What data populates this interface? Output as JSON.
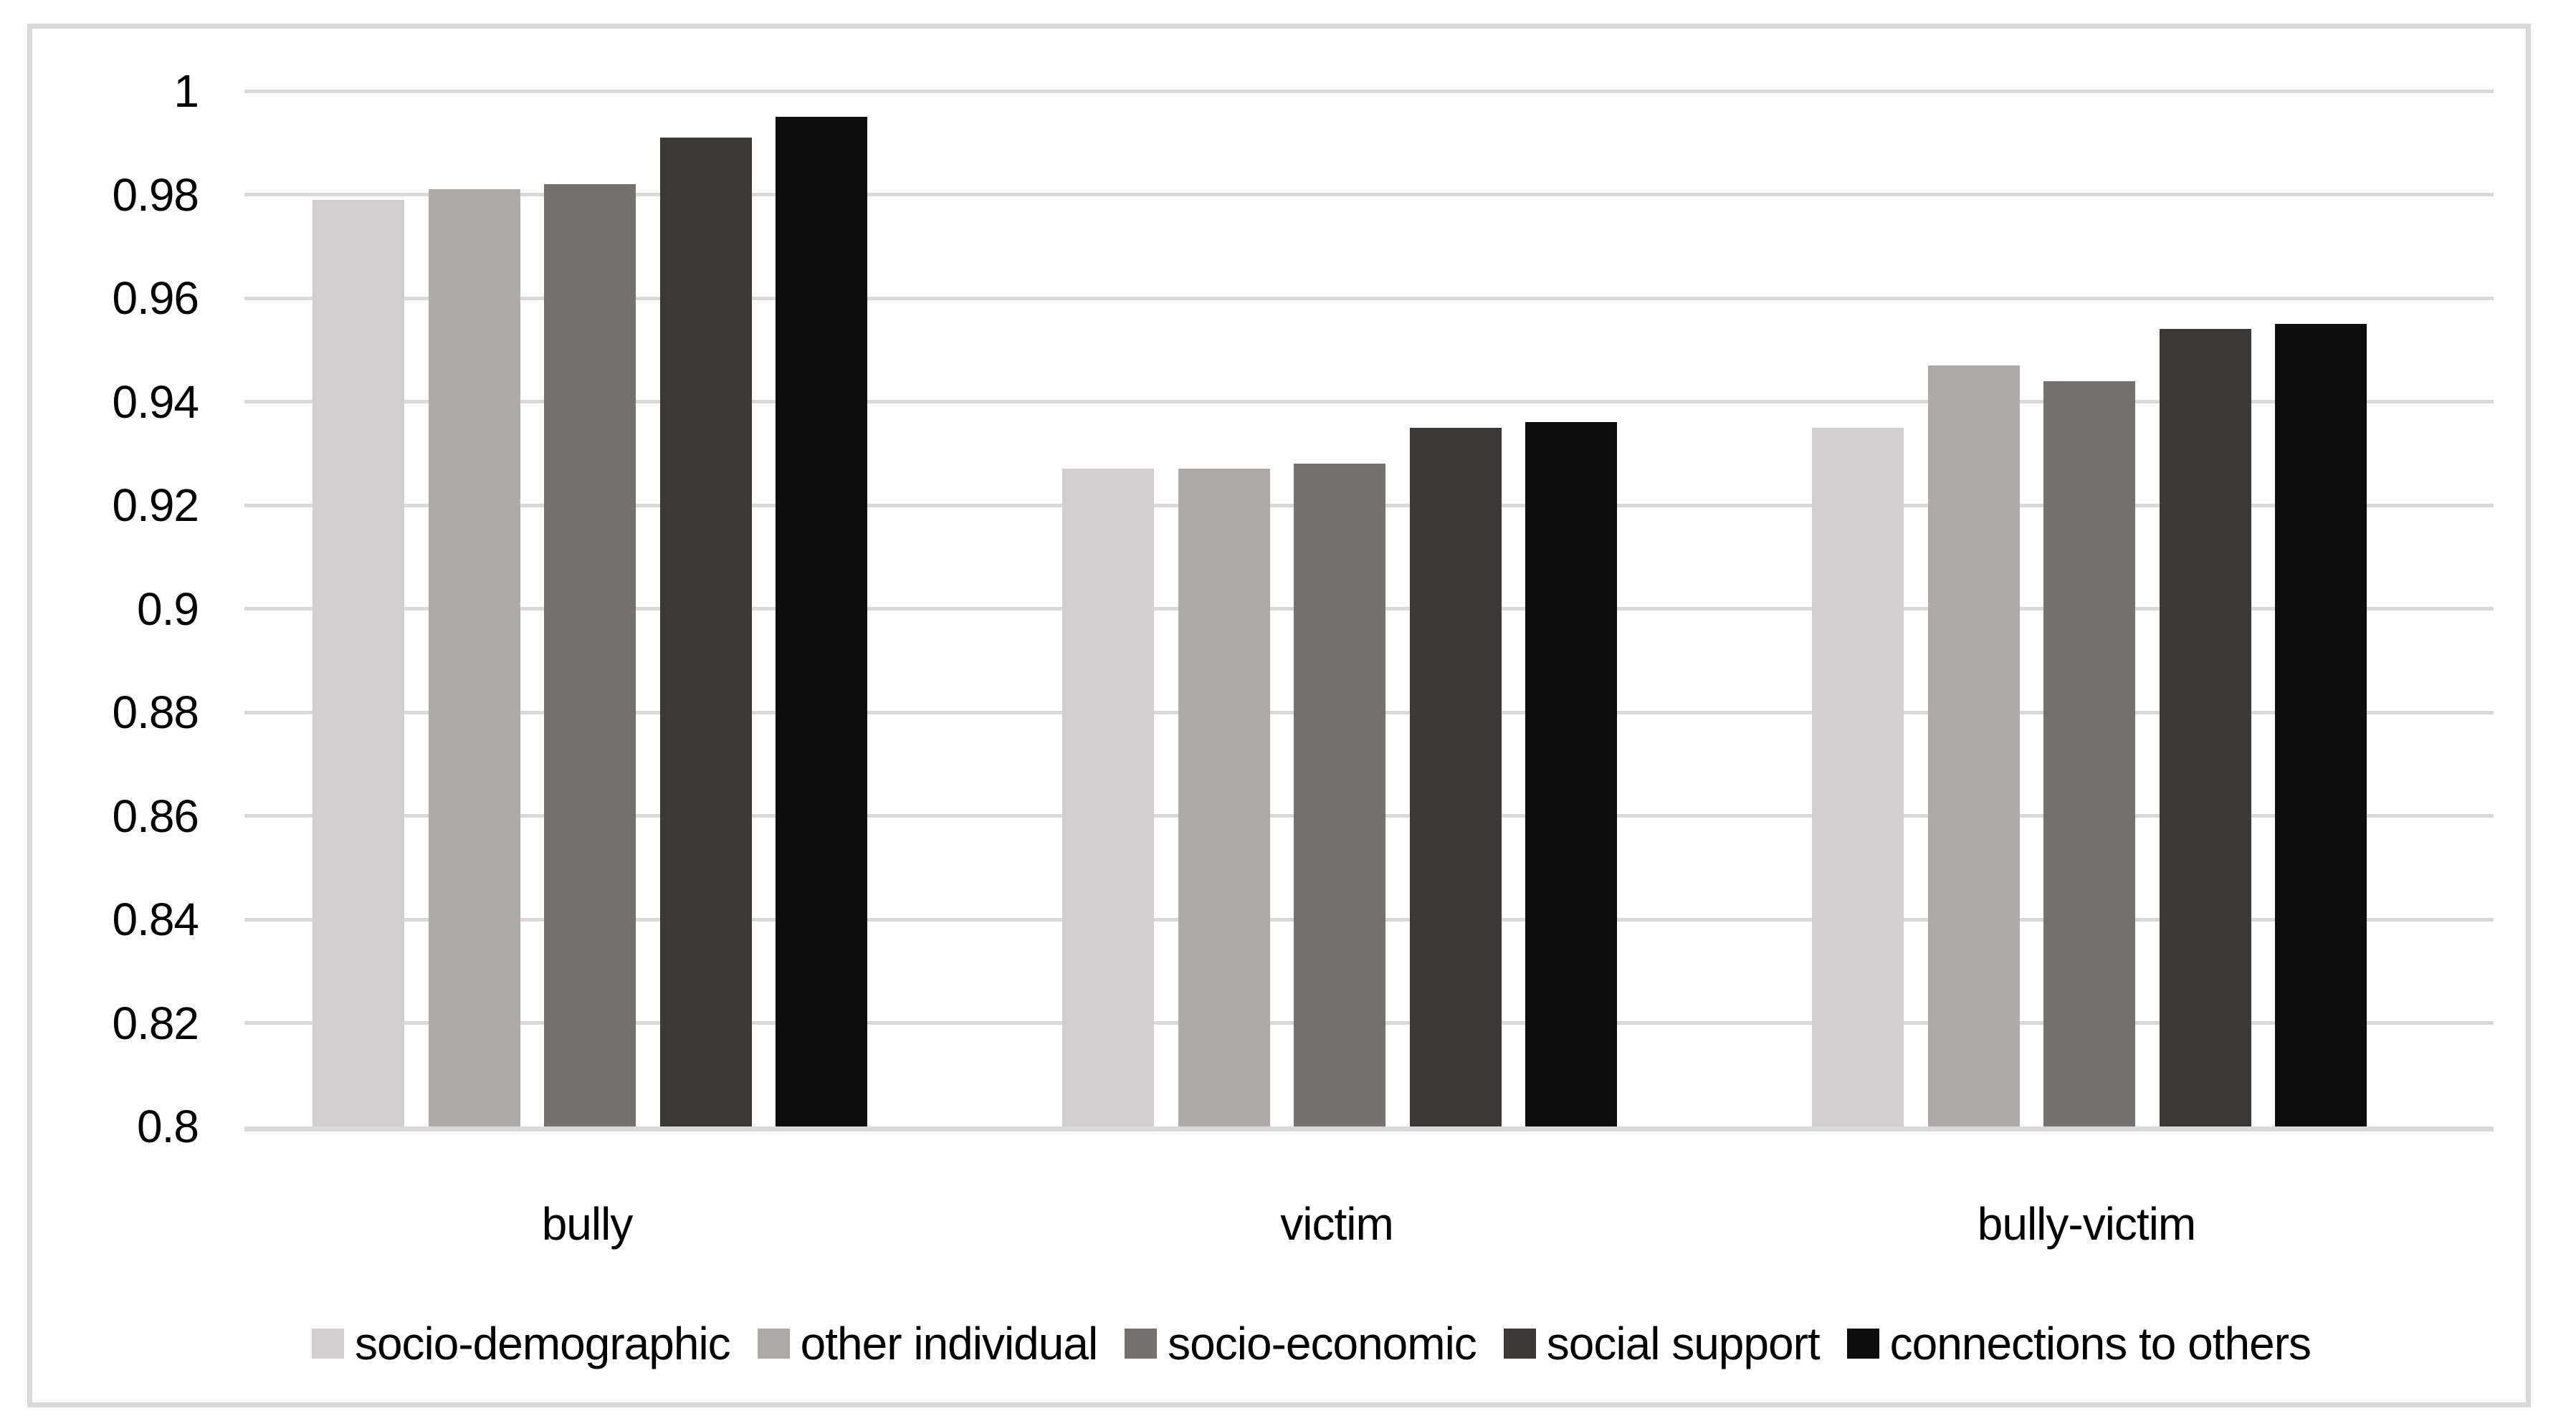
{
  "chart_data": {
    "type": "bar",
    "title": "",
    "xlabel": "",
    "ylabel": "",
    "categories": [
      "bully",
      "victim",
      "bully-victim"
    ],
    "series": [
      {
        "name": "socio-demographic",
        "color": "#d0cece",
        "values": [
          0.979,
          0.927,
          0.935
        ]
      },
      {
        "name": "other individual",
        "color": "#aeaaaa",
        "values": [
          0.981,
          0.927,
          0.947
        ]
      },
      {
        "name": "socio-economic",
        "color": "#757171",
        "values": [
          0.982,
          0.928,
          0.944
        ]
      },
      {
        "name": "social support",
        "color": "#3b3838",
        "values": [
          0.991,
          0.935,
          0.954
        ]
      },
      {
        "name": "connections to others",
        "color": "#0d0d0d",
        "values": [
          0.995,
          0.936,
          0.955
        ]
      }
    ],
    "ylim": [
      0.8,
      1.0
    ],
    "ytick_step": 0.02,
    "ytick_labels": [
      "0.8",
      "0.82",
      "0.84",
      "0.86",
      "0.88",
      "0.9",
      "0.92",
      "0.94",
      "0.96",
      "0.98",
      "1"
    ],
    "grid": true,
    "gridline_color": "#d9d9d9",
    "frame_color": "#d9d9d9",
    "text_color": "#000000",
    "legend_position": "bottom"
  }
}
